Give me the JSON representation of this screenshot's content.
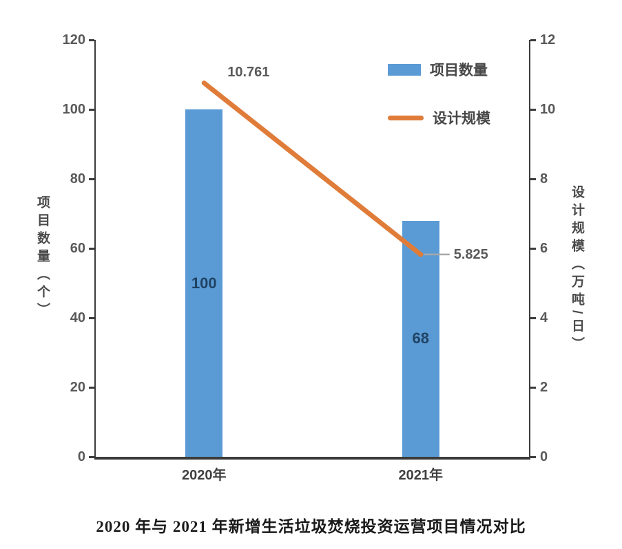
{
  "figure": {
    "caption": "2020 年与 2021 年新增生活垃圾焚烧投资运营项目情况对比"
  },
  "chart_data": {
    "type": "bar",
    "subtype": "bar-line-combo-dual-axis",
    "categories": [
      "2020年",
      "2021年"
    ],
    "series": [
      {
        "name": "项目数量",
        "type": "bar",
        "axis": "left",
        "values": [
          100,
          68
        ],
        "value_labels": [
          "100",
          "68"
        ],
        "color": "#5B9BD5"
      },
      {
        "name": "设计规模",
        "type": "line",
        "axis": "right",
        "values": [
          10.761,
          5.825
        ],
        "value_labels": [
          "10.761",
          "5.825"
        ],
        "color": "#E07C39"
      }
    ],
    "left_axis": {
      "title": "项目数量（个）",
      "min": 0,
      "max": 120,
      "tick_step": 20,
      "ticks": [
        0,
        20,
        40,
        60,
        80,
        100,
        120
      ]
    },
    "right_axis": {
      "title": "设计规模（万吨/日）",
      "min": 0,
      "max": 12,
      "tick_step": 2,
      "ticks": [
        0,
        2,
        4,
        6,
        8,
        10,
        12
      ]
    },
    "legend": [
      {
        "label": "项目数量",
        "swatch": "bar",
        "color": "#5B9BD5"
      },
      {
        "label": "设计规模",
        "swatch": "line",
        "color": "#E07C39"
      }
    ],
    "legend_position": "inside-top-right",
    "grid": false,
    "title": "2020 年与 2021 年新增生活垃圾焚烧投资运营项目情况对比",
    "colors": {
      "axis": "#3B3B3B",
      "tick_label": "#595959",
      "bar_value_label": "#1F4263",
      "leader_line": "#A8A8A8"
    }
  }
}
